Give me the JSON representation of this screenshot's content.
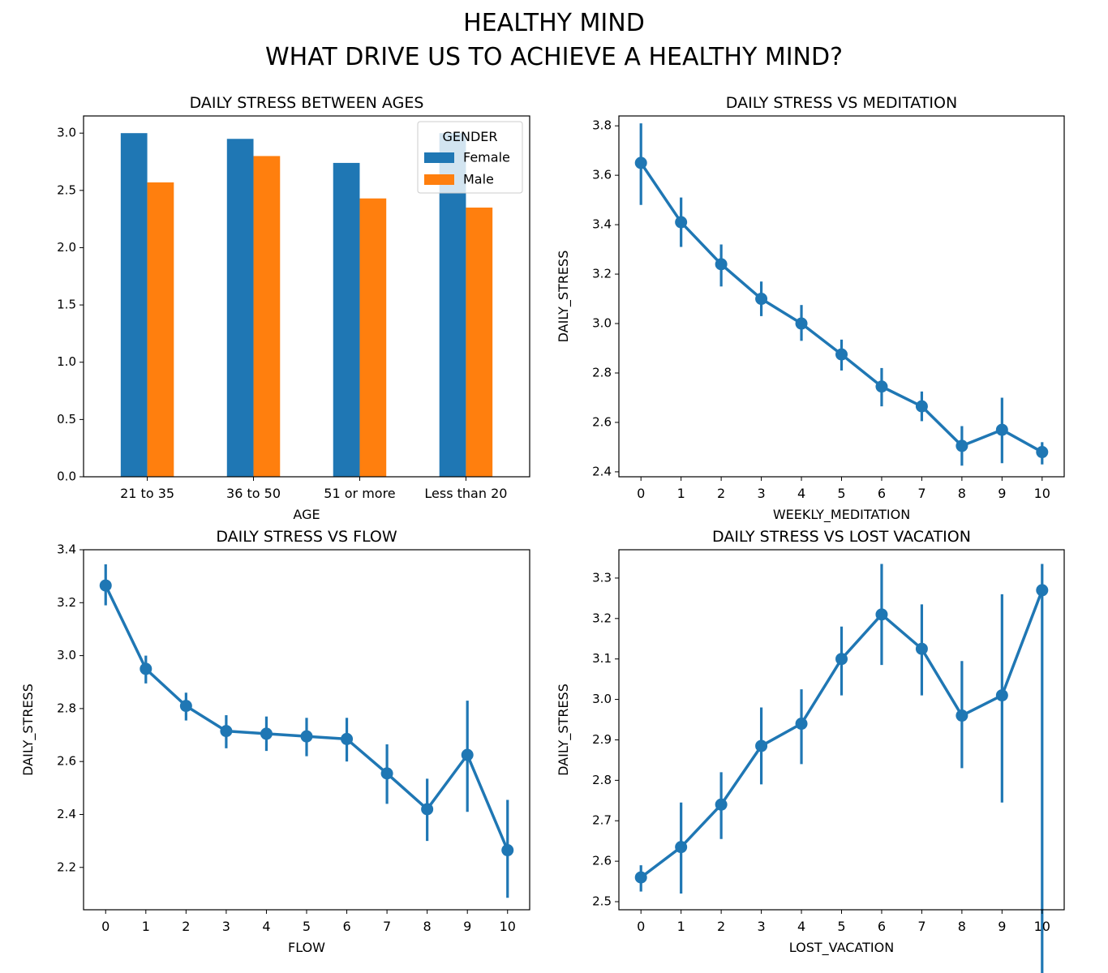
{
  "figure": {
    "title_line1": "HEALTHY MIND",
    "title_line2": "WHAT DRIVE US TO ACHIEVE A HEALTHY MIND?"
  },
  "colors": {
    "blue": "#1f77b4",
    "orange": "#ff7f0e"
  },
  "chart_data": [
    {
      "type": "bar",
      "title": "DAILY STRESS BETWEEN AGES",
      "xlabel": "AGE",
      "ylabel": "",
      "categories": [
        "21 to 35",
        "36 to 50",
        "51 or more",
        "Less than 20"
      ],
      "series": [
        {
          "name": "Female",
          "values": [
            3.0,
            2.95,
            2.74,
            3.0
          ]
        },
        {
          "name": "Male",
          "values": [
            2.57,
            2.8,
            2.43,
            2.35
          ]
        }
      ],
      "ylim": [
        0,
        3.15
      ],
      "yticks": [
        "0.0",
        "0.5",
        "1.0",
        "1.5",
        "2.0",
        "2.5",
        "3.0"
      ],
      "legend": {
        "title": "GENDER",
        "placement": "upper right"
      },
      "grid": false
    },
    {
      "type": "line",
      "title": "DAILY STRESS VS MEDITATION",
      "xlabel": "WEEKLY_MEDITATION",
      "ylabel": "DAILY_STRESS",
      "x": [
        "0",
        "1",
        "2",
        "3",
        "4",
        "5",
        "6",
        "7",
        "8",
        "9",
        "10"
      ],
      "y": [
        3.65,
        3.41,
        3.24,
        3.1,
        3.0,
        2.875,
        2.745,
        2.665,
        2.505,
        2.57,
        2.48
      ],
      "ci_low": [
        3.48,
        3.31,
        3.15,
        3.03,
        2.93,
        2.81,
        2.665,
        2.605,
        2.425,
        2.435,
        2.43
      ],
      "ci_high": [
        3.81,
        3.51,
        3.32,
        3.17,
        3.075,
        2.935,
        2.82,
        2.725,
        2.585,
        2.7,
        2.52
      ],
      "ylim": [
        2.38,
        3.84
      ],
      "yticks": [
        "2.4",
        "2.6",
        "2.8",
        "3.0",
        "3.2",
        "3.4",
        "3.6",
        "3.8"
      ],
      "grid": false
    },
    {
      "type": "line",
      "title": "DAILY STRESS VS FLOW",
      "xlabel": "FLOW",
      "ylabel": "DAILY_STRESS",
      "x": [
        "0",
        "1",
        "2",
        "3",
        "4",
        "5",
        "6",
        "7",
        "8",
        "9",
        "10"
      ],
      "y": [
        3.265,
        2.95,
        2.81,
        2.715,
        2.705,
        2.695,
        2.685,
        2.555,
        2.42,
        2.625,
        2.265
      ],
      "ci_low": [
        3.19,
        2.895,
        2.755,
        2.65,
        2.64,
        2.62,
        2.6,
        2.44,
        2.3,
        2.41,
        2.085
      ],
      "ci_high": [
        3.345,
        3.0,
        2.86,
        2.775,
        2.77,
        2.765,
        2.765,
        2.665,
        2.535,
        2.83,
        2.455
      ],
      "ylim": [
        2.04,
        3.4
      ],
      "yticks": [
        "2.2",
        "2.4",
        "2.6",
        "2.8",
        "3.0",
        "3.2",
        "3.4"
      ],
      "grid": false
    },
    {
      "type": "line",
      "title": "DAILY STRESS VS LOST VACATION",
      "xlabel": "LOST_VACATION",
      "ylabel": "DAILY_STRESS",
      "x": [
        "0",
        "1",
        "2",
        "3",
        "4",
        "5",
        "6",
        "7",
        "8",
        "9",
        "10"
      ],
      "y": [
        2.56,
        2.635,
        2.74,
        2.885,
        2.94,
        3.1,
        3.21,
        3.125,
        2.96,
        3.01,
        3.27
      ],
      "ci_low": [
        2.525,
        2.52,
        2.655,
        2.79,
        2.84,
        3.01,
        3.085,
        3.01,
        2.83,
        2.745,
        2.21
      ],
      "ci_high": [
        2.59,
        2.745,
        2.82,
        2.98,
        3.025,
        3.18,
        3.335,
        3.235,
        3.095,
        3.26,
        3.335
      ],
      "ylim": [
        2.48,
        3.37
      ],
      "yticks": [
        "2.5",
        "2.6",
        "2.7",
        "2.8",
        "2.9",
        "3.0",
        "3.1",
        "3.2",
        "3.3"
      ],
      "grid": false
    }
  ]
}
